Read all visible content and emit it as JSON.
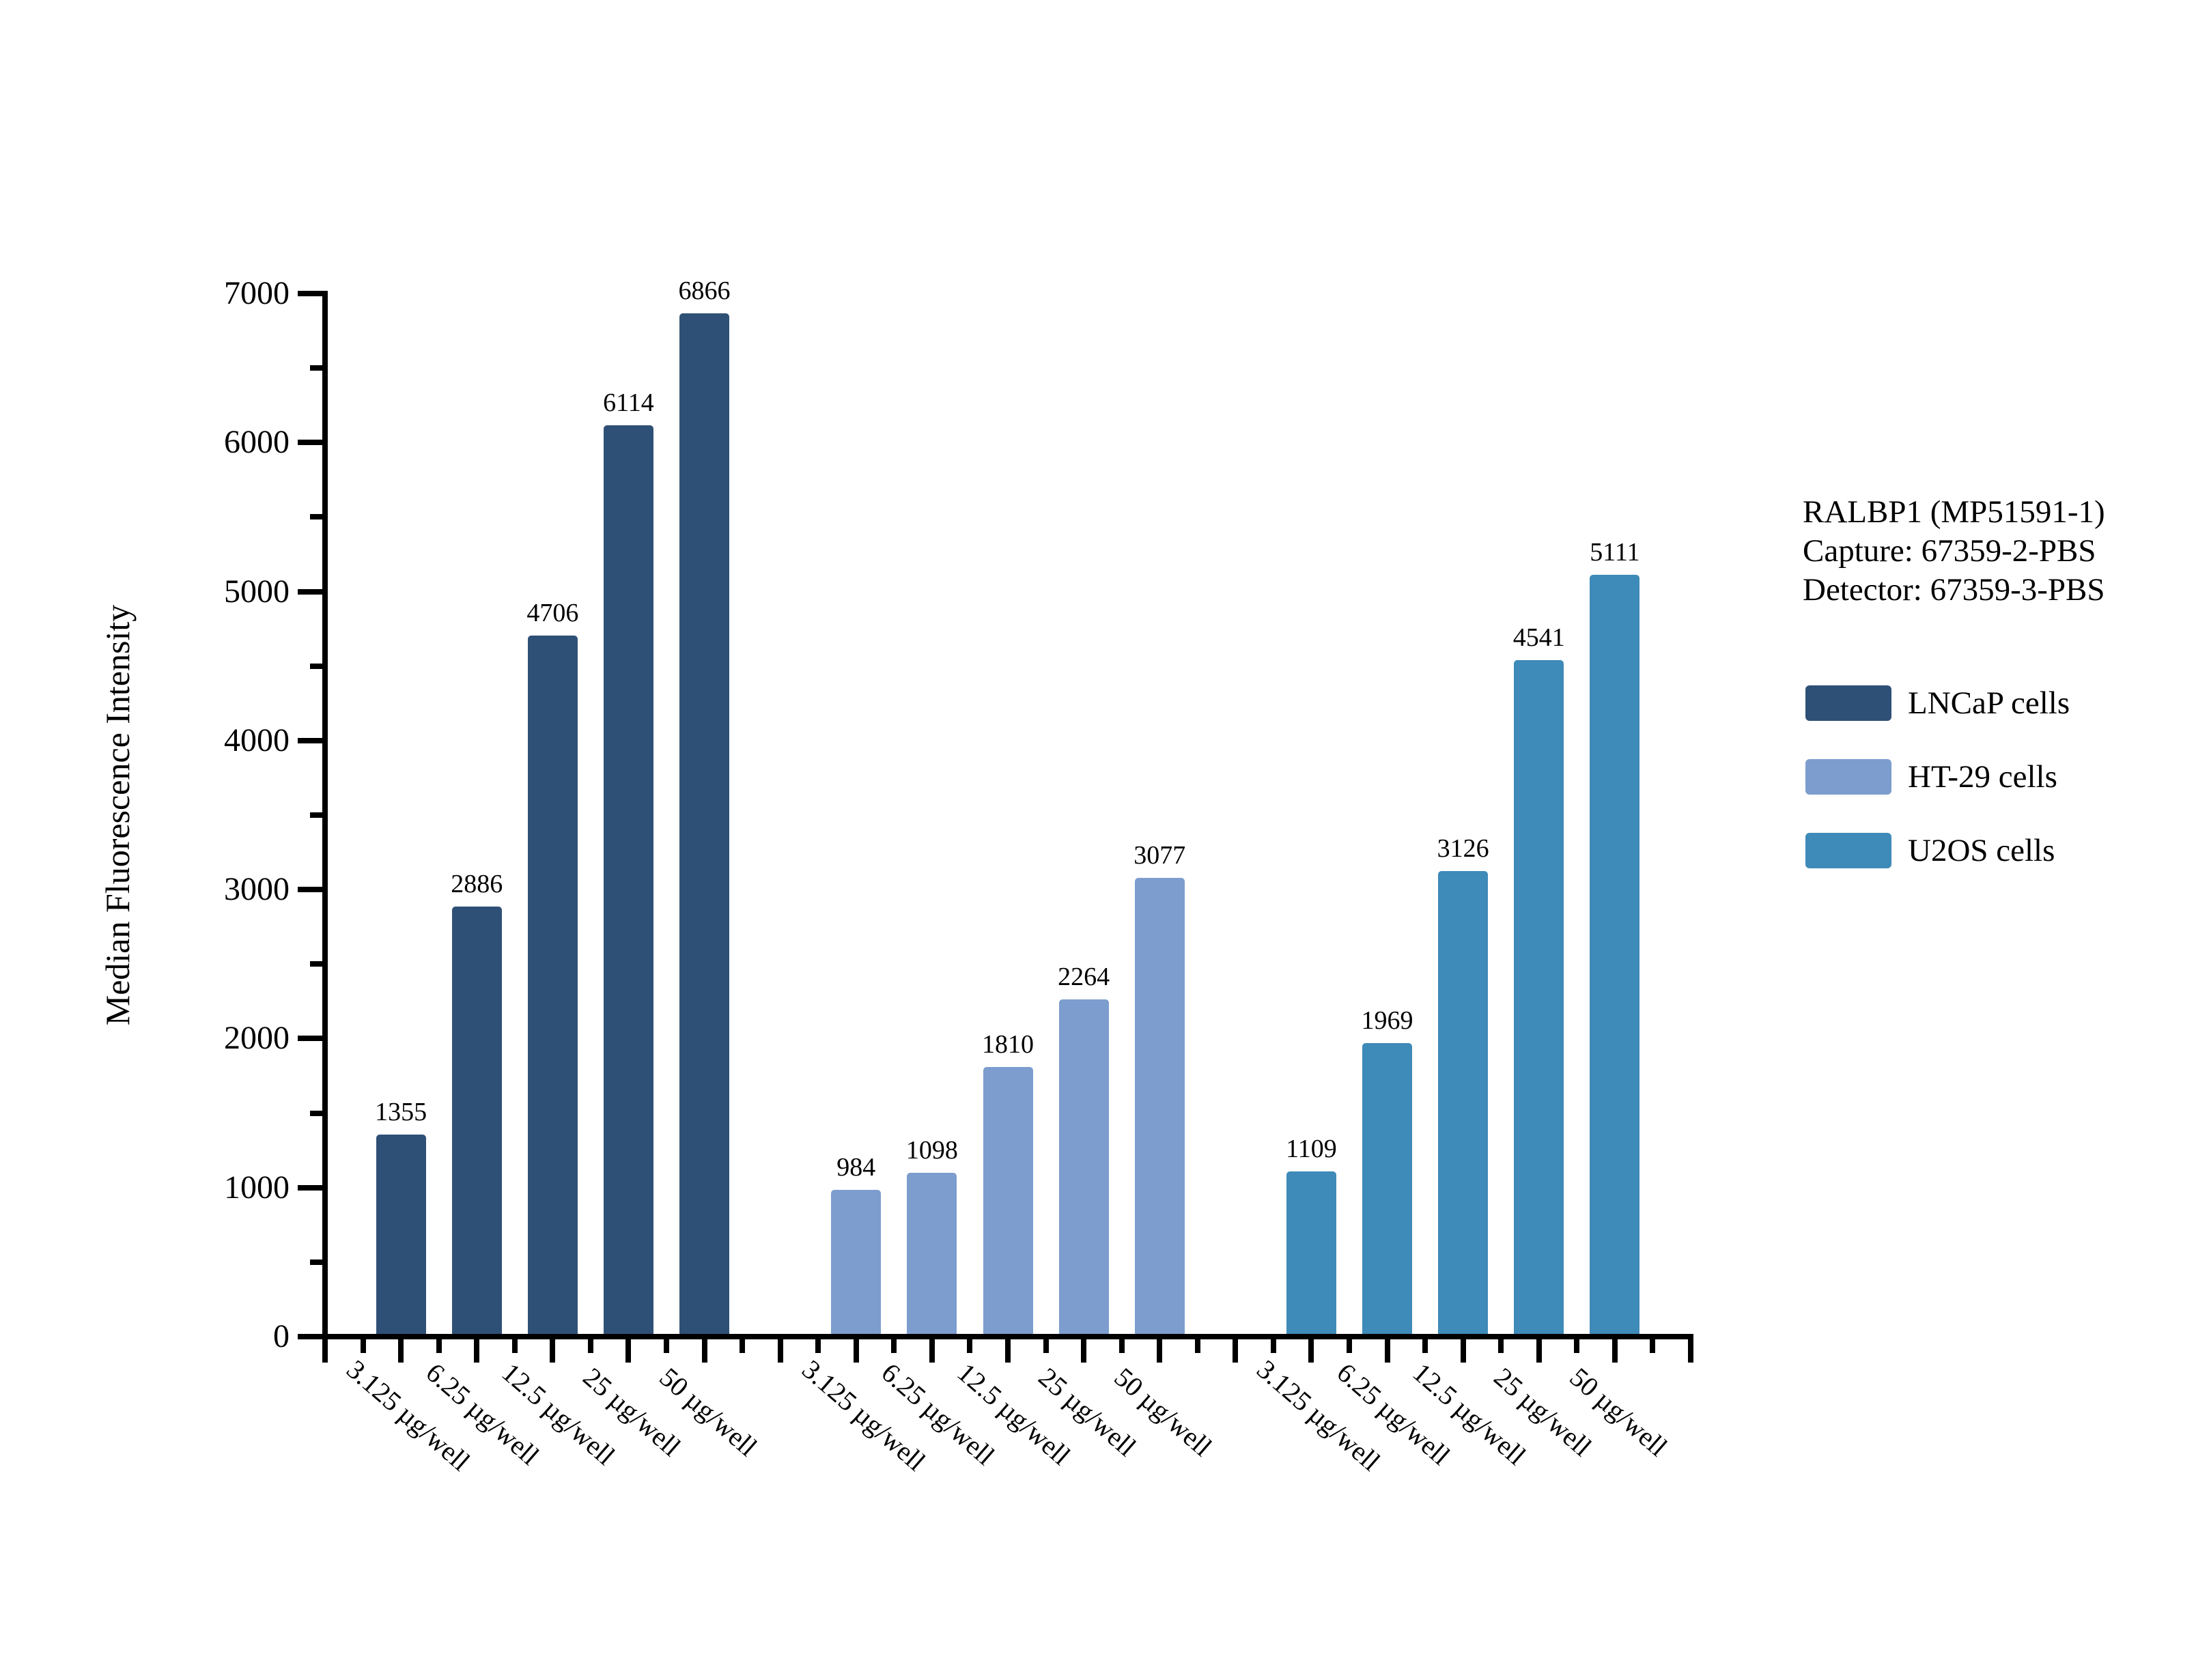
{
  "chart_data": {
    "type": "bar",
    "title": "",
    "xlabel": "",
    "ylabel": "Median Fluorescence Intensity",
    "ylim": [
      0,
      7000
    ],
    "y_major_ticks": [
      0,
      1000,
      2000,
      3000,
      4000,
      5000,
      6000,
      7000
    ],
    "y_minor_step": 500,
    "grid": false,
    "bar_value_labels": true,
    "legend_position": "right",
    "categories": [
      "3.125 µg/well",
      "6.25 µg/well",
      "12.5 µg/well",
      "25 µg/well",
      "50 µg/well"
    ],
    "series": [
      {
        "name": "LNCaP cells",
        "color": "#2F5076",
        "values": [
          1355,
          2886,
          4706,
          6114,
          6866
        ]
      },
      {
        "name": "HT-29 cells",
        "color": "#7C9DCE",
        "values": [
          984,
          1098,
          1810,
          2264,
          3077
        ]
      },
      {
        "name": "U2OS cells",
        "color": "#3E8AB8",
        "values": [
          1109,
          1969,
          3126,
          4541,
          5111
        ]
      }
    ]
  },
  "annotation": {
    "lines": [
      "RALBP1 (MP51591-1)",
      "Capture: 67359-2-PBS",
      "Detector: 67359-3-PBS"
    ]
  },
  "colors": {
    "axis": "#000000",
    "background": "#ffffff"
  }
}
